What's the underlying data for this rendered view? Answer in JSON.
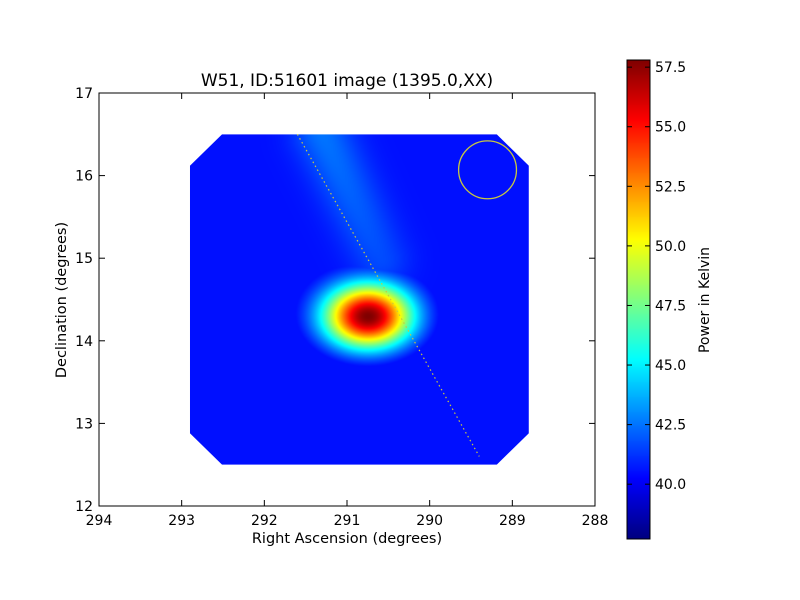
{
  "chart_data": {
    "type": "heatmap",
    "title": "W51, ID:51601 image (1395.0,XX)",
    "xlabel": "Right Ascension (degrees)",
    "ylabel": "Declination (degrees)",
    "xlim": [
      294,
      288
    ],
    "ylim": [
      12,
      17
    ],
    "x_ticks": [
      "294",
      "293",
      "292",
      "291",
      "290",
      "289",
      "288"
    ],
    "y_ticks": [
      "12",
      "13",
      "14",
      "15",
      "16",
      "17"
    ],
    "x_tick_values": [
      294,
      293,
      292,
      291,
      290,
      289,
      288
    ],
    "y_tick_values": [
      12,
      13,
      14,
      15,
      16,
      17
    ],
    "colorbar": {
      "label": "Power in Kelvin",
      "range": [
        37.7,
        57.8
      ],
      "colormap": "jet",
      "tick_values": [
        40.0,
        42.5,
        45.0,
        47.5,
        50.0,
        52.5,
        55.0,
        57.5
      ],
      "ticks": [
        "40.0",
        "42.5",
        "45.0",
        "47.5",
        "50.0",
        "52.5",
        "55.0",
        "57.5"
      ]
    },
    "map_region": {
      "ra_range": [
        292.9,
        288.8
      ],
      "dec_range": [
        12.5,
        16.5
      ],
      "shape": "octagon (clipped corners)"
    },
    "peak": {
      "ra": 290.75,
      "dec": 14.3,
      "value": 57.8
    },
    "secondary_ridge": {
      "from_ra": 291.3,
      "from_dec": 16.5,
      "to_ra": 290.6,
      "to_dec": 15.0,
      "value": 42.5
    },
    "background_values": {
      "north": 40.5,
      "southwest": 38.0,
      "northeast": 38.5
    },
    "dotted_line": {
      "ra": [
        291.6,
        289.4
      ],
      "dec": [
        16.5,
        12.6
      ],
      "color": "#c8c840"
    },
    "beam_circle": {
      "ra": 289.3,
      "dec": 16.07,
      "radius_deg": 0.35,
      "color": "#c8c840"
    },
    "grid": false
  }
}
